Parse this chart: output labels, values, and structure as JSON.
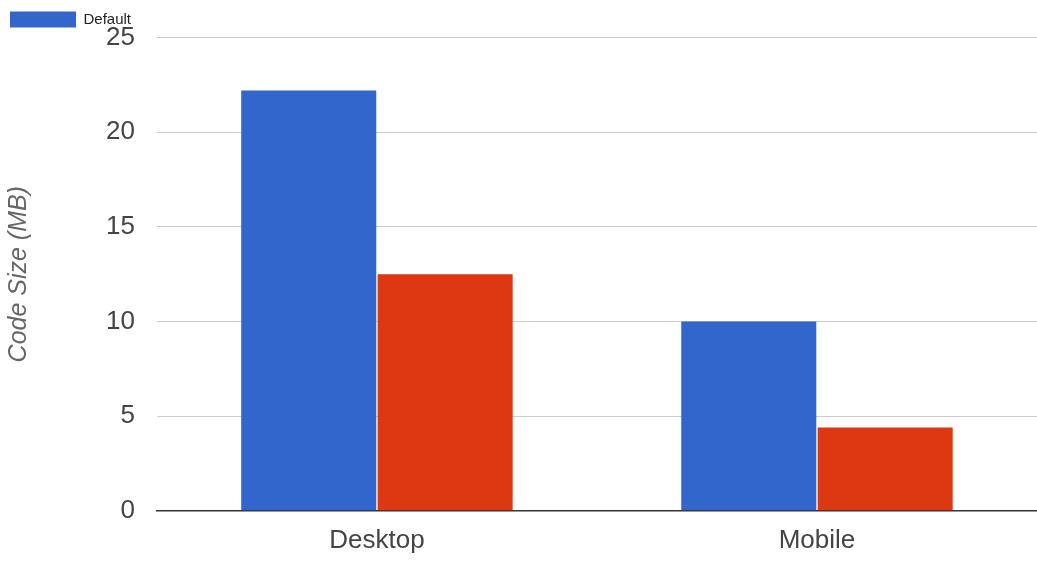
{
  "chart_data": {
    "type": "bar",
    "ylabel": "Code Size (MB)",
    "categories": [
      "Desktop",
      "Mobile"
    ],
    "series": [
      {
        "name": "Default",
        "color": "#3366cc",
        "values": [
          22.2,
          10
        ]
      },
      {
        "color": "#dc3912",
        "values": [
          12.5,
          4.4
        ]
      }
    ],
    "ylim": [
      0,
      25
    ],
    "yticks": [
      0,
      5,
      10,
      15,
      20,
      25
    ],
    "grid": "y",
    "legend": "top left"
  }
}
